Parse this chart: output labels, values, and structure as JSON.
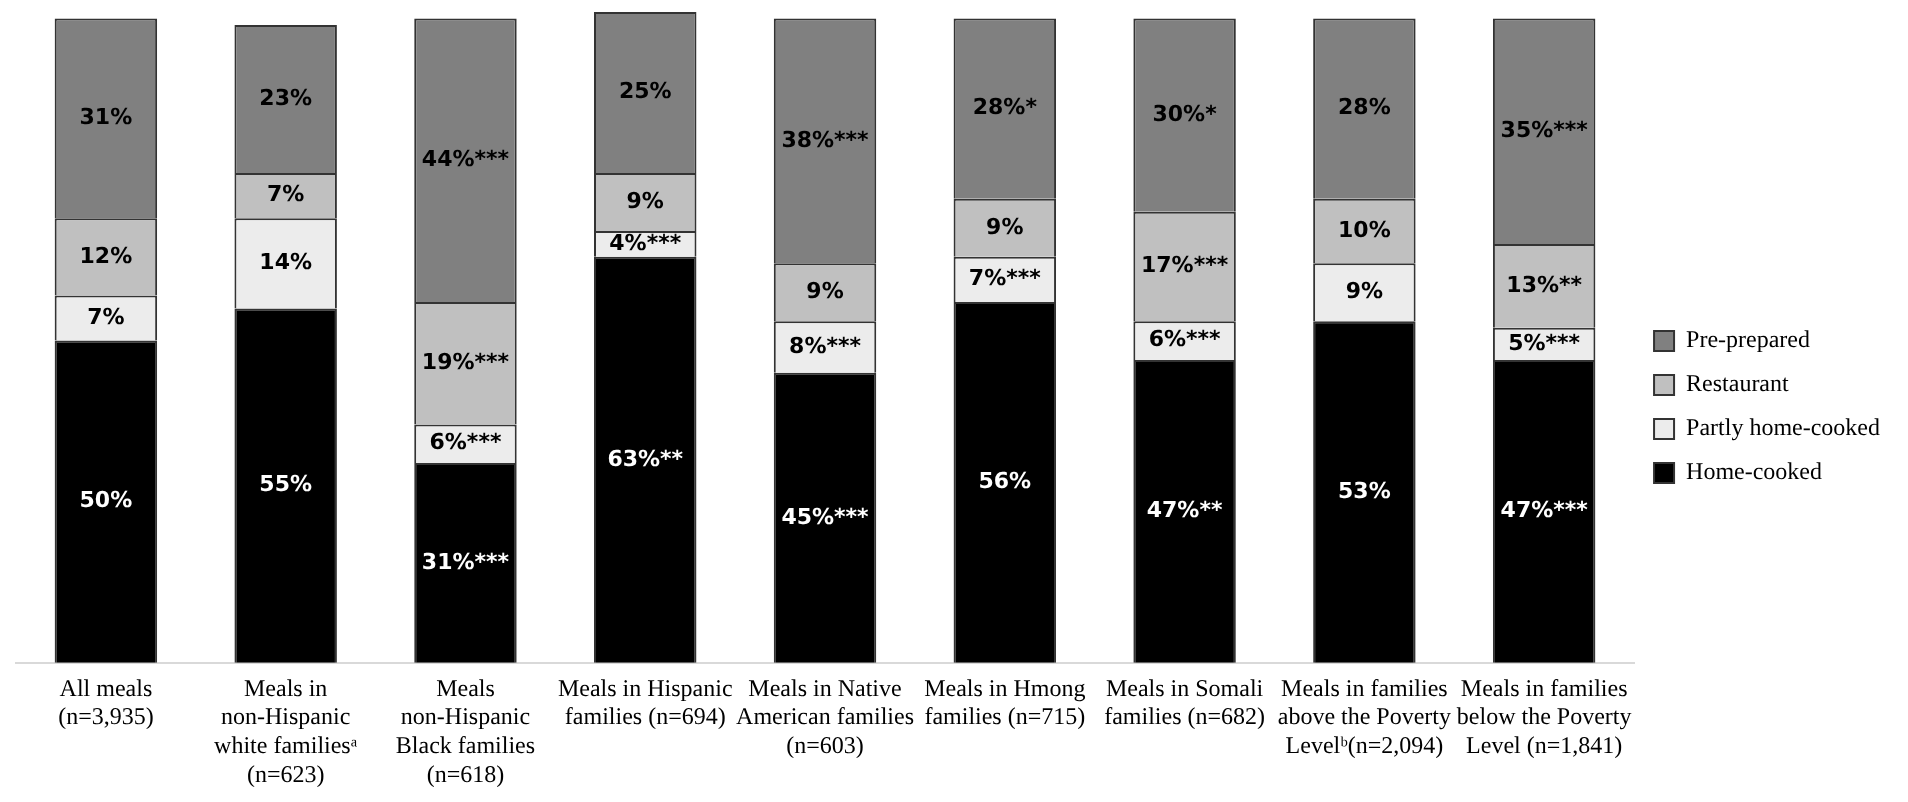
{
  "chart_data": {
    "type": "bar",
    "stacked": true,
    "categories": [
      "All meals (n=3,935)",
      "Meals in non-Hispanic white familiesᵃ (n=623)",
      "Meals non-Hispanic Black families (n=618)",
      "Meals in Hispanic families (n=694)",
      "Meals in Native American families (n=603)",
      "Meals in Hmong families (n=715)",
      "Meals in Somali families (n=682)",
      "Meals in families above the Poverty Levelᵇ(n=2,094)",
      "Meals in families below the Poverty Level (n=1,841)"
    ],
    "series": [
      {
        "name": "Home-cooked",
        "color": "#000000",
        "values": [
          50,
          55,
          31,
          63,
          45,
          56,
          47,
          53,
          47
        ],
        "value_labels": [
          "50%",
          "55%",
          "31%***",
          "63%**",
          "45%***",
          "56%",
          "47%**",
          "53%",
          "47%***"
        ]
      },
      {
        "name": "Partly home-cooked",
        "color": "#ececec",
        "values": [
          7,
          14,
          6,
          4,
          8,
          7,
          6,
          9,
          5
        ],
        "value_labels": [
          "7%",
          "14%",
          "6%***",
          "4%***",
          "8%***",
          "7%***",
          "6%***",
          "9%",
          "5%***"
        ]
      },
      {
        "name": "Restaurant",
        "color": "#c0c0c0",
        "values": [
          12,
          7,
          19,
          9,
          9,
          9,
          17,
          10,
          13
        ],
        "value_labels": [
          "12%",
          "7%",
          "19%***",
          "9%",
          "9%",
          "9%",
          "17%***",
          "10%",
          "13%**"
        ]
      },
      {
        "name": "Pre-prepared",
        "color": "#808080",
        "values": [
          31,
          23,
          44,
          25,
          38,
          28,
          30,
          28,
          35
        ],
        "value_labels": [
          "31%",
          "23%",
          "44%***",
          "25%",
          "38%***",
          "28%*",
          "30%*",
          "28%",
          "35%***"
        ]
      }
    ],
    "ylim": [
      0,
      101
    ],
    "tick_labels": "x",
    "legend": "right",
    "grid": false
  }
}
